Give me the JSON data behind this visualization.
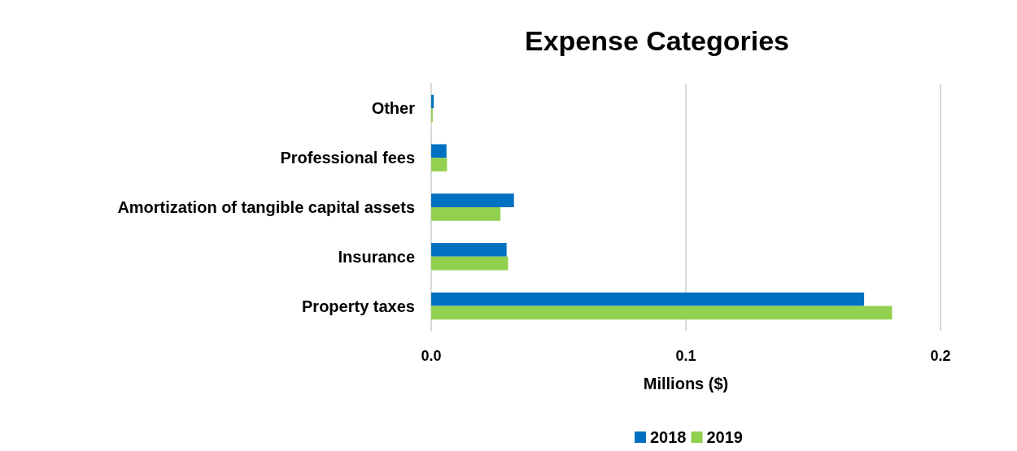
{
  "chart_data": {
    "type": "bar",
    "orientation": "horizontal",
    "title": "Expense Categories",
    "xlabel": "Millions ($)",
    "categories": [
      "Other",
      "Professional fees",
      "Amortization of tangible capital assets",
      "Insurance",
      "Property taxes"
    ],
    "series": [
      {
        "name": "2018",
        "color": "#0070c0",
        "values": [
          0.001,
          0.006,
          0.0325,
          0.0296,
          0.17
        ]
      },
      {
        "name": "2019",
        "color": "#92d050",
        "values": [
          0.0006,
          0.0062,
          0.0272,
          0.0302,
          0.181
        ]
      }
    ],
    "xlim": [
      0,
      0.2
    ],
    "xticks": [
      {
        "value": 0,
        "label": "0.0"
      },
      {
        "value": 0.1,
        "label": "0.1"
      },
      {
        "value": 0.2,
        "label": "0.2"
      }
    ],
    "grid": "x",
    "legend": "bottom"
  }
}
